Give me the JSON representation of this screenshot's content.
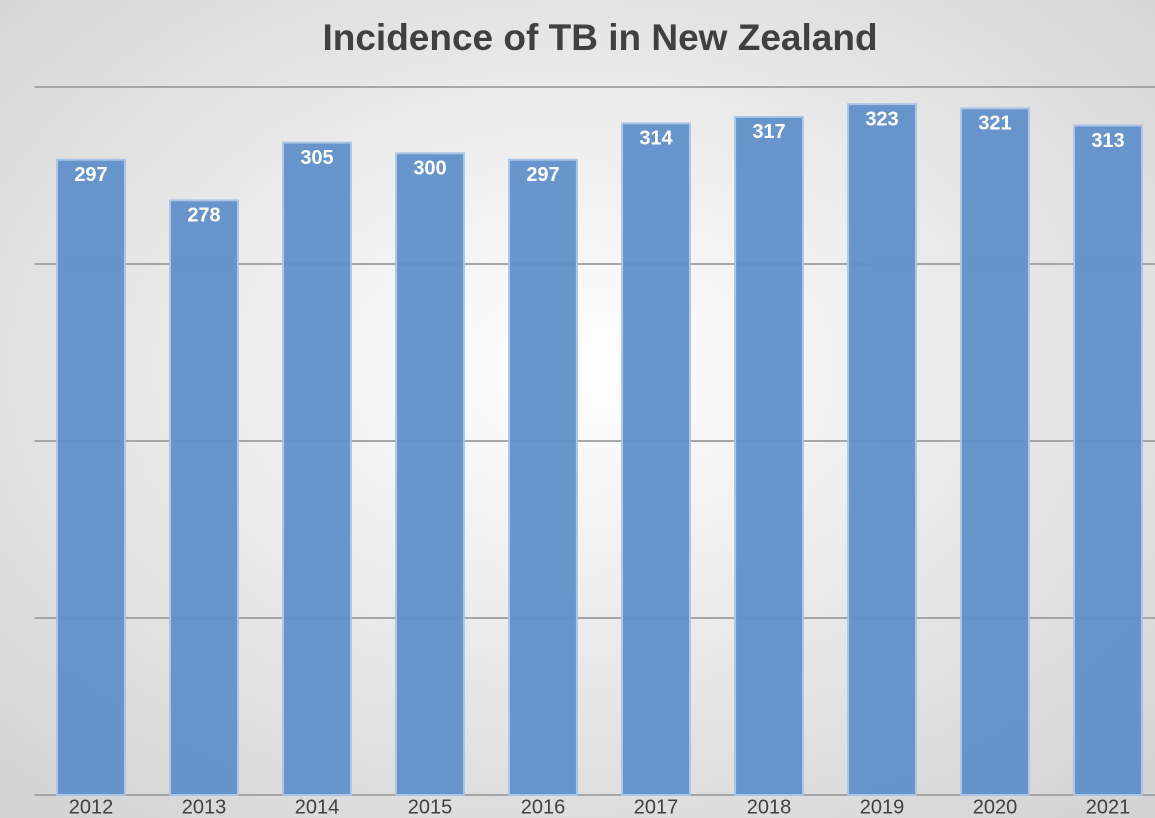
{
  "chart_data": {
    "type": "bar",
    "title": "Incidence of TB in New Zealand",
    "categories": [
      "2012",
      "2013",
      "2014",
      "2015",
      "2016",
      "2017",
      "2018",
      "2019",
      "2020",
      "2021"
    ],
    "values": [
      297,
      278,
      305,
      300,
      297,
      314,
      317,
      323,
      321,
      313
    ],
    "color": "#5f8fc9",
    "ylim": [
      0,
      331
    ],
    "yticks": [
      0,
      82.75,
      165.5,
      248.25,
      331
    ],
    "show_ytick_labels": false,
    "grid": true
  }
}
